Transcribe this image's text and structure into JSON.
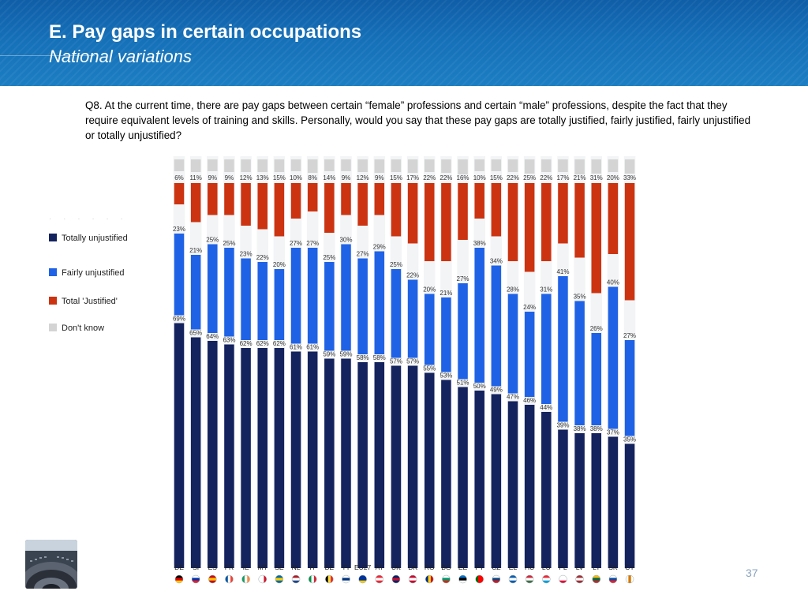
{
  "header": {
    "title": "E. Pay gaps in certain occupations",
    "subtitle": "National variations"
  },
  "question": "Q8. At the current time, there are pay gaps between certain “female” professions and certain “male” professions, despite the fact that they require equivalent levels of training and skills. Personally, would you say that these pay gaps are totally justified, fairly justified,  fairly unjustified or totally unjustified?",
  "legend": [
    {
      "label": "Totally unjustified",
      "color": "#14235e"
    },
    {
      "label": "Fairly unjustified",
      "color": "#1f62e6"
    },
    {
      "label": "Total 'Justified'",
      "color": "#cc3311"
    },
    {
      "label": "Don't know",
      "color": "#d4d4d4"
    }
  ],
  "page_number": "37",
  "chart_data": {
    "type": "bar",
    "stacked": true,
    "categories": [
      "DE",
      "SI",
      "ES",
      "FR",
      "IE",
      "MT",
      "SE",
      "NL",
      "IT",
      "BE",
      "FI",
      "EU27",
      "AT",
      "UK",
      "DK",
      "RO",
      "BG",
      "EE",
      "PT",
      "CZ",
      "EL",
      "HU",
      "LU",
      "PL",
      "LV",
      "LT",
      "SK",
      "CY"
    ],
    "series": [
      {
        "name": "Totally unjustified",
        "color": "#14235e",
        "values": [
          69,
          65,
          64,
          63,
          62,
          62,
          62,
          61,
          61,
          59,
          59,
          58,
          58,
          57,
          57,
          55,
          53,
          51,
          50,
          49,
          47,
          46,
          44,
          39,
          38,
          38,
          37,
          35
        ]
      },
      {
        "name": "Fairly unjustified",
        "color": "#1f62e6",
        "values": [
          23,
          21,
          25,
          25,
          23,
          22,
          20,
          27,
          27,
          25,
          30,
          27,
          29,
          25,
          22,
          20,
          21,
          27,
          38,
          34,
          28,
          24,
          31,
          41,
          35,
          26,
          40,
          27
        ]
      },
      {
        "name": "Total 'Justified'",
        "color": "#cc3311",
        "values": [
          6,
          11,
          9,
          9,
          12,
          13,
          15,
          10,
          8,
          14,
          9,
          12,
          9,
          15,
          17,
          22,
          22,
          16,
          10,
          15,
          22,
          25,
          22,
          17,
          21,
          31,
          20,
          33
        ]
      },
      {
        "name": "Don't know",
        "color": "#d4d4d4",
        "values": [
          2,
          3,
          2,
          3,
          3,
          3,
          3,
          2,
          4,
          2,
          2,
          3,
          4,
          3,
          4,
          3,
          4,
          6,
          2,
          2,
          3,
          5,
          3,
          3,
          6,
          5,
          3,
          5
        ]
      }
    ],
    "value_suffix": "%"
  },
  "flags": {
    "DE": [
      "#000000",
      "#dd0000",
      "#ffce00"
    ],
    "SI": [
      "#ffffff",
      "#0033aa",
      "#ee1c25"
    ],
    "ES": [
      "#c60b1e",
      "#ffc400",
      "#c60b1e"
    ],
    "FR": [
      "#0055a4",
      "#ffffff",
      "#ef4135"
    ],
    "IE": [
      "#169b62",
      "#ffffff",
      "#ff883e"
    ],
    "MT": [
      "#ffffff",
      "#ffffff",
      "#cf142b"
    ],
    "SE": [
      "#006aa7",
      "#fecc00",
      "#006aa7"
    ],
    "NL": [
      "#ae1c28",
      "#ffffff",
      "#21468b"
    ],
    "IT": [
      "#009246",
      "#ffffff",
      "#ce2b37"
    ],
    "BE": [
      "#000000",
      "#fae042",
      "#ed2939"
    ],
    "FI": [
      "#ffffff",
      "#003580",
      "#ffffff"
    ],
    "EU27": [
      "#003399",
      "#003399",
      "#ffcc00"
    ],
    "AT": [
      "#ed2939",
      "#ffffff",
      "#ed2939"
    ],
    "UK": [
      "#012169",
      "#c8102e",
      "#012169"
    ],
    "DK": [
      "#c60c30",
      "#ffffff",
      "#c60c30"
    ],
    "RO": [
      "#002b7f",
      "#fcd116",
      "#ce1126"
    ],
    "BG": [
      "#ffffff",
      "#00966e",
      "#d62612"
    ],
    "EE": [
      "#0072ce",
      "#000000",
      "#ffffff"
    ],
    "PT": [
      "#006600",
      "#ff0000",
      "#ff0000"
    ],
    "CZ": [
      "#ffffff",
      "#11457e",
      "#d7141a"
    ],
    "EL": [
      "#0d5eaf",
      "#ffffff",
      "#0d5eaf"
    ],
    "HU": [
      "#cd2a3e",
      "#ffffff",
      "#436f4d"
    ],
    "LU": [
      "#ed2939",
      "#ffffff",
      "#00a1de"
    ],
    "PL": [
      "#ffffff",
      "#ffffff",
      "#dc143c"
    ],
    "LV": [
      "#9e3039",
      "#ffffff",
      "#9e3039"
    ],
    "LT": [
      "#fdb913",
      "#006a44",
      "#c1272d"
    ],
    "SK": [
      "#ffffff",
      "#0b4ea2",
      "#ee1c25"
    ],
    "CY": [
      "#ffffff",
      "#d57800",
      "#ffffff"
    ]
  }
}
